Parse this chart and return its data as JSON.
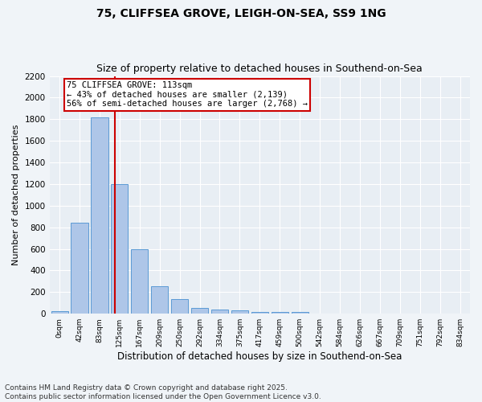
{
  "title1": "75, CLIFFSEA GROVE, LEIGH-ON-SEA, SS9 1NG",
  "title2": "Size of property relative to detached houses in Southend-on-Sea",
  "xlabel": "Distribution of detached houses by size in Southend-on-Sea",
  "ylabel": "Number of detached properties",
  "bar_labels": [
    "0sqm",
    "42sqm",
    "83sqm",
    "125sqm",
    "167sqm",
    "209sqm",
    "250sqm",
    "292sqm",
    "334sqm",
    "375sqm",
    "417sqm",
    "459sqm",
    "500sqm",
    "542sqm",
    "584sqm",
    "626sqm",
    "667sqm",
    "709sqm",
    "751sqm",
    "792sqm",
    "834sqm"
  ],
  "bar_heights": [
    25,
    840,
    1820,
    1200,
    600,
    255,
    135,
    50,
    40,
    30,
    20,
    20,
    20,
    0,
    0,
    0,
    0,
    0,
    0,
    0,
    0
  ],
  "bar_color": "#aec6e8",
  "bar_edge_color": "#5b9bd5",
  "annotation_text": "75 CLIFFSEA GROVE: 113sqm\n← 43% of detached houses are smaller (2,139)\n56% of semi-detached houses are larger (2,768) →",
  "annotation_box_color": "#ffffff",
  "annotation_box_edge": "#cc0000",
  "red_line_color": "#cc0000",
  "ylim": [
    0,
    2200
  ],
  "yticks": [
    0,
    200,
    400,
    600,
    800,
    1000,
    1200,
    1400,
    1600,
    1800,
    2000,
    2200
  ],
  "bg_color": "#e8eef4",
  "fig_bg_color": "#f0f4f8",
  "footnote": "Contains HM Land Registry data © Crown copyright and database right 2025.\nContains public sector information licensed under the Open Government Licence v3.0.",
  "title1_fontsize": 10,
  "title2_fontsize": 9,
  "annot_fontsize": 7.5,
  "footnote_fontsize": 6.5,
  "ylabel_fontsize": 8,
  "xlabel_fontsize": 8.5
}
